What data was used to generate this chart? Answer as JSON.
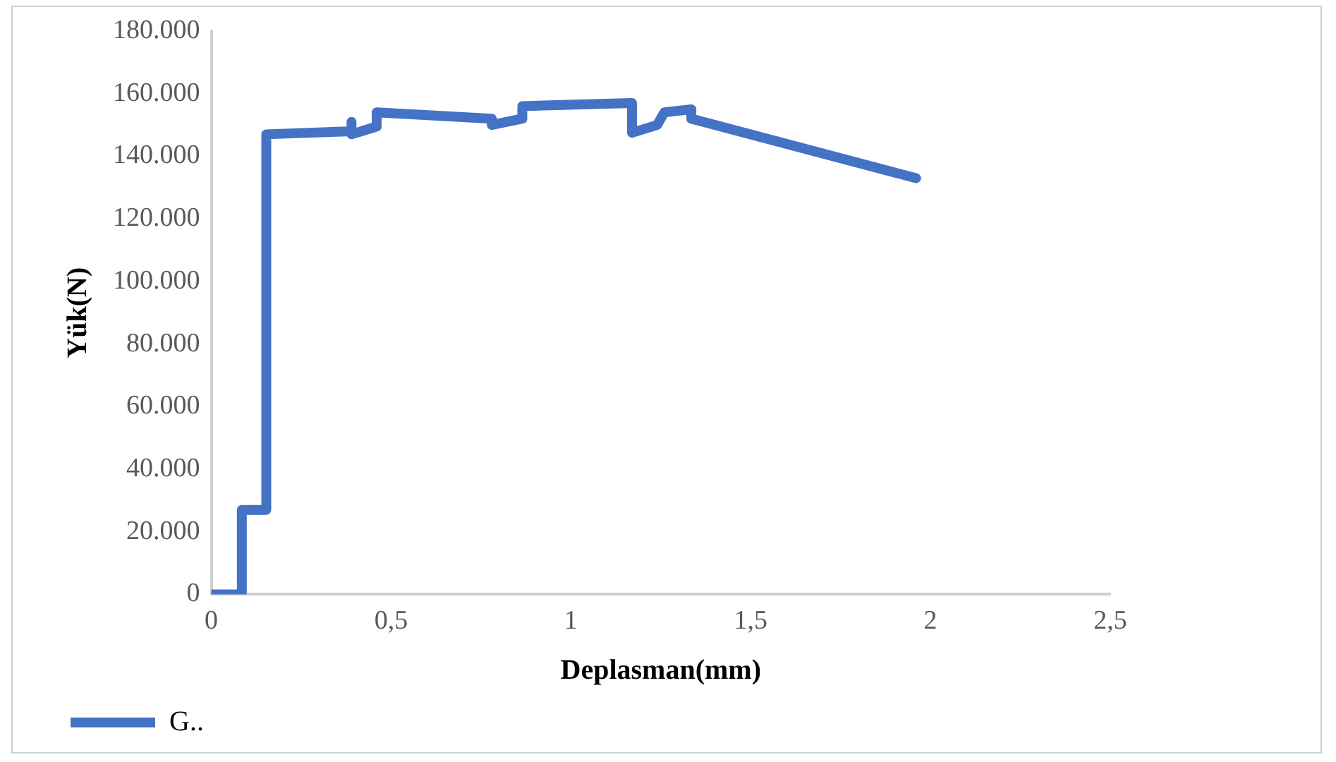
{
  "chart_data": {
    "type": "line",
    "xlabel": "Deplasman(mm)",
    "ylabel": "Yük(N)",
    "x": [
      0,
      0.085,
      0.085,
      0.153,
      0.153,
      0.39,
      0.39,
      0.39,
      0.46,
      0.46,
      0.78,
      0.78,
      0.865,
      0.865,
      1.17,
      1.17,
      1.24,
      1.26,
      1.335,
      1.335,
      1.96
    ],
    "series": [
      {
        "name": "G..",
        "color": "#4472c4",
        "values": [
          0,
          0,
          27000,
          27000,
          147000,
          148000,
          151000,
          147000,
          149500,
          154000,
          152000,
          150000,
          152000,
          156000,
          157000,
          147500,
          150000,
          154000,
          155000,
          152000,
          133000
        ]
      }
    ],
    "xlim": [
      0,
      2.5
    ],
    "xticks": [
      0,
      {
        "value": 0.5,
        "label": "0,5"
      },
      1,
      {
        "value": 1.5,
        "label": "1,5"
      },
      2,
      {
        "value": 2.5,
        "label": "2,5"
      }
    ],
    "ylim": [
      0,
      180000
    ],
    "yticks": [
      0,
      {
        "value": 20000,
        "label": "20.000"
      },
      {
        "value": 40000,
        "label": "40.000"
      },
      {
        "value": 60000,
        "label": "60.000"
      },
      {
        "value": 80000,
        "label": "80.000"
      },
      {
        "value": 100000,
        "label": "100.000"
      },
      {
        "value": 120000,
        "label": "120.000"
      },
      {
        "value": 140000,
        "label": "140.000"
      },
      {
        "value": 160000,
        "label": "160.000"
      },
      {
        "value": 180000,
        "label": "180.000"
      }
    ],
    "grid": false,
    "legend": "bottom left",
    "marker": "none",
    "line_style": "solid"
  }
}
